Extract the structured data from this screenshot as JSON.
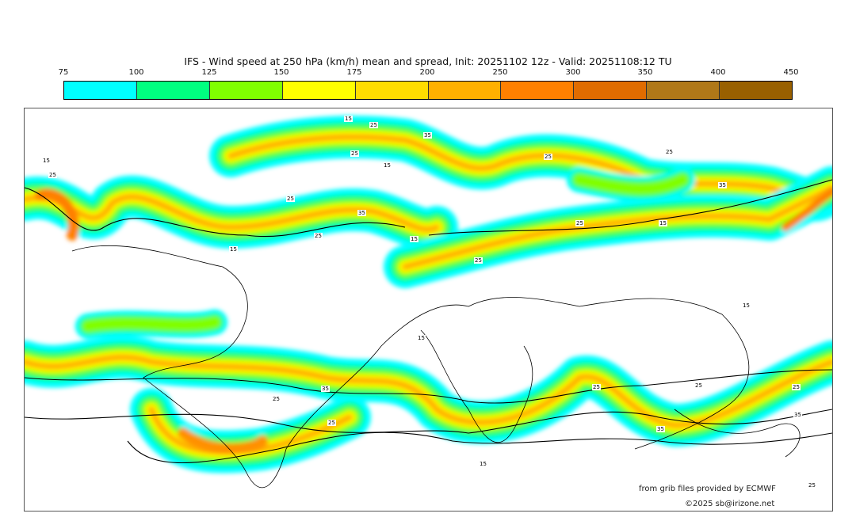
{
  "title": "IFS - Wind speed at 250 hPa (km/h) mean and spread, Init: 20251102 12z - Valid: 20251108:12 TU",
  "colorbar": {
    "ticks": [
      "75",
      "100",
      "125",
      "150",
      "175",
      "200",
      "250",
      "300",
      "350",
      "400",
      "450"
    ],
    "colors": [
      "#00ffff",
      "#00ff80",
      "#80ff00",
      "#ffff00",
      "#ffdd00",
      "#ffb000",
      "#ff8000",
      "#e06c00",
      "#b07818",
      "#996000"
    ]
  },
  "contour_labels": [
    "15",
    "25",
    "35",
    "25",
    "15",
    "25",
    "35",
    "25",
    "15",
    "25",
    "25",
    "15",
    "25",
    "35",
    "25",
    "15",
    "15",
    "25",
    "35",
    "25",
    "25",
    "35",
    "25",
    "15",
    "15",
    "25",
    "15",
    "25",
    "35",
    "25"
  ],
  "credits": {
    "source": "from grib files provided by ECMWF",
    "copyright": "©2025 sb@irizone.net"
  }
}
